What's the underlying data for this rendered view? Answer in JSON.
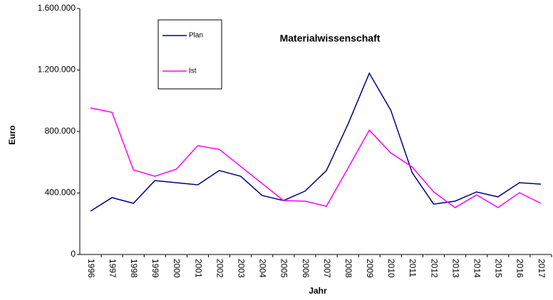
{
  "chart_data": {
    "type": "line",
    "title": "Materialwissenschaft",
    "x_label": "Jahr",
    "y_label": "Euro",
    "categories": [
      "1996",
      "1997",
      "1998",
      "1999",
      "2000",
      "2001",
      "2002",
      "2003",
      "2004",
      "2005",
      "2006",
      "2007",
      "2008",
      "2009",
      "2010",
      "2011",
      "2012",
      "2013",
      "2014",
      "2015",
      "2016",
      "2017"
    ],
    "series": [
      {
        "name": "Plan",
        "color": "#000080",
        "values": [
          282000,
          370000,
          333000,
          481000,
          467000,
          453000,
          546000,
          509000,
          384000,
          351000,
          412000,
          546000,
          846000,
          1179000,
          939000,
          532000,
          328000,
          347000,
          407000,
          375000,
          467000,
          458000
        ]
      },
      {
        "name": "Ist",
        "color": "#ff00ff",
        "values": [
          953000,
          925000,
          550000,
          509000,
          555000,
          708000,
          684000,
          573000,
          462000,
          351000,
          347000,
          314000,
          560000,
          809000,
          661000,
          569000,
          407000,
          305000,
          388000,
          305000,
          402000,
          333000
        ]
      }
    ],
    "ylim": [
      0,
      1600000
    ],
    "yticks": [
      0,
      {
        "value": 400000,
        "label": "400.000"
      },
      {
        "value": 800000,
        "label": "800.000"
      },
      {
        "value": 1200000,
        "label": "1.200.000"
      },
      {
        "value": 1600000,
        "label": "1.600.000"
      }
    ],
    "grid": false
  }
}
